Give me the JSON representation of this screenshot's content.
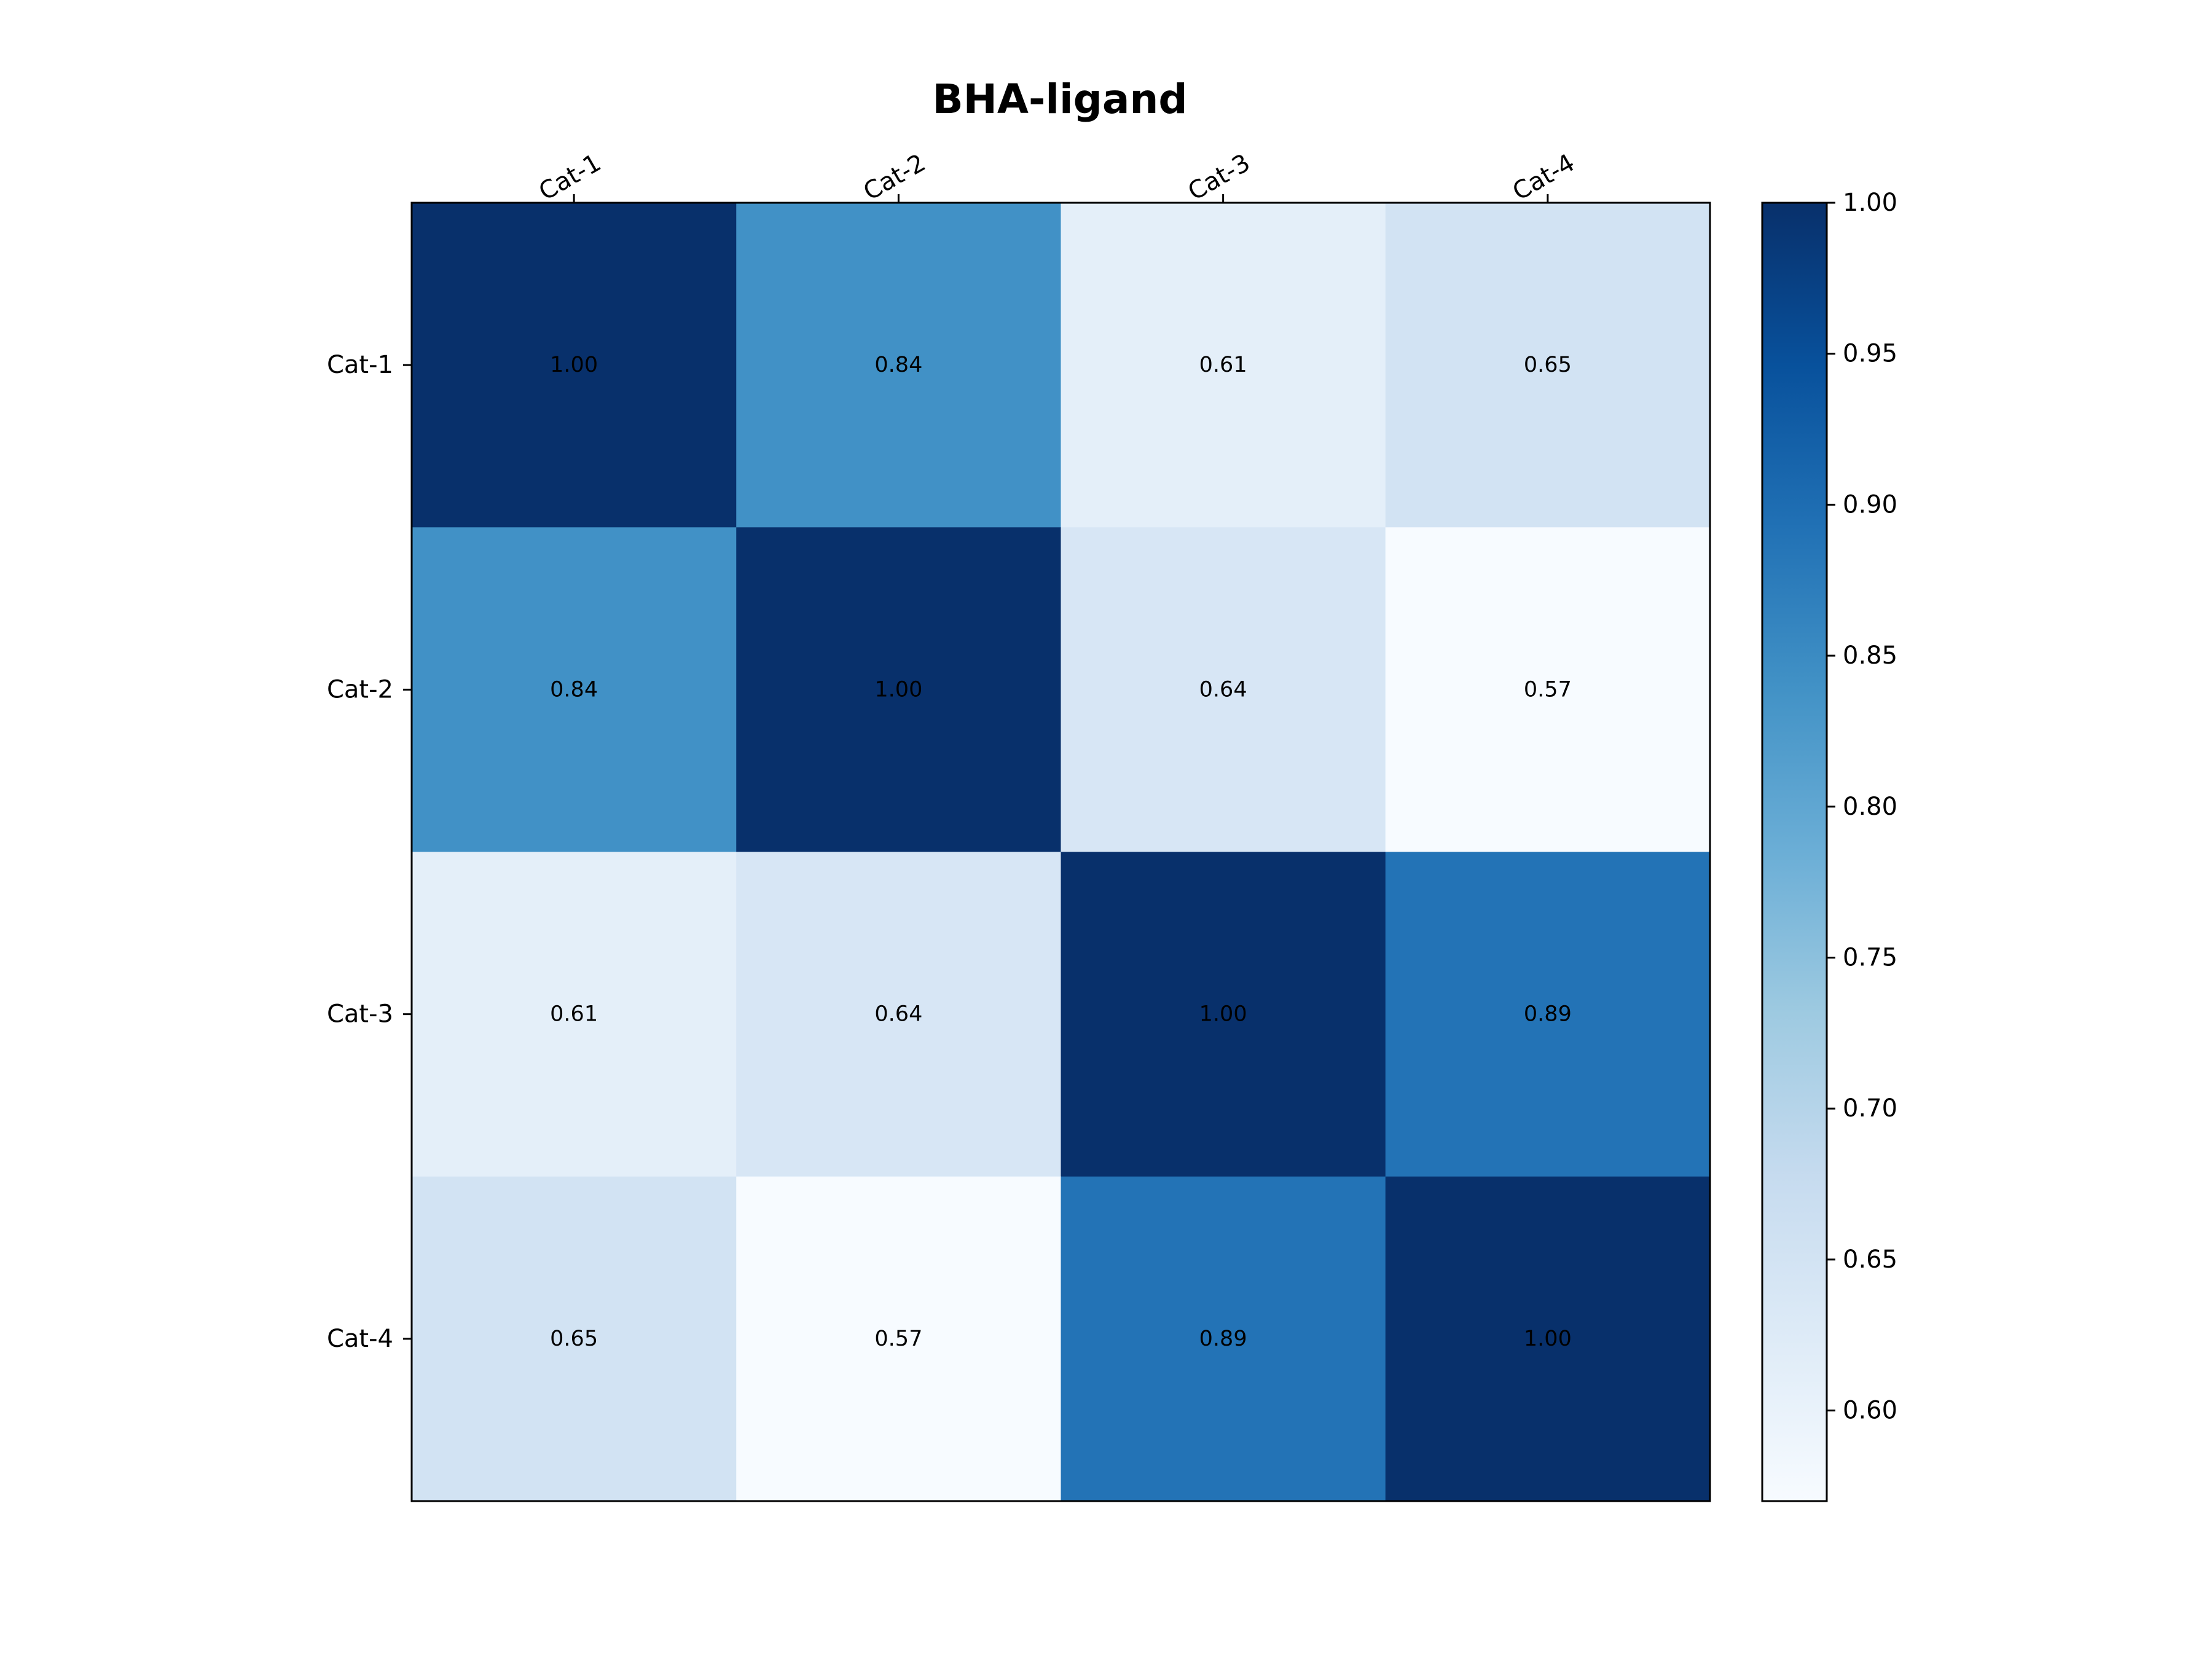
{
  "chart_data": {
    "type": "heatmap",
    "title": "BHA-ligand",
    "x_categories": [
      "Cat-1",
      "Cat-2",
      "Cat-3",
      "Cat-4"
    ],
    "y_categories": [
      "Cat-1",
      "Cat-2",
      "Cat-3",
      "Cat-4"
    ],
    "values": [
      [
        1.0,
        0.84,
        0.61,
        0.65
      ],
      [
        0.84,
        1.0,
        0.64,
        0.57
      ],
      [
        0.61,
        0.64,
        1.0,
        0.89
      ],
      [
        0.65,
        0.57,
        0.89,
        1.0
      ]
    ],
    "value_format_decimals": 2,
    "colormap": "Blues",
    "colormap_stops": [
      "#f7fbff",
      "#deebf7",
      "#c6dbef",
      "#9ecae1",
      "#6baed6",
      "#4292c6",
      "#2171b5",
      "#08519c",
      "#08306b"
    ],
    "colorbar": {
      "range": [
        0.57,
        1.0
      ],
      "ticks": [
        0.6,
        0.65,
        0.7,
        0.75,
        0.8,
        0.85,
        0.9,
        0.95,
        1.0
      ],
      "tick_labels": [
        "0.60",
        "0.65",
        "0.70",
        "0.75",
        "0.80",
        "0.85",
        "0.90",
        "0.95",
        "1.00"
      ],
      "position": "right"
    },
    "x_tick_position": "top",
    "x_tick_rotation_deg": 30,
    "grid": false,
    "legend": "none"
  }
}
